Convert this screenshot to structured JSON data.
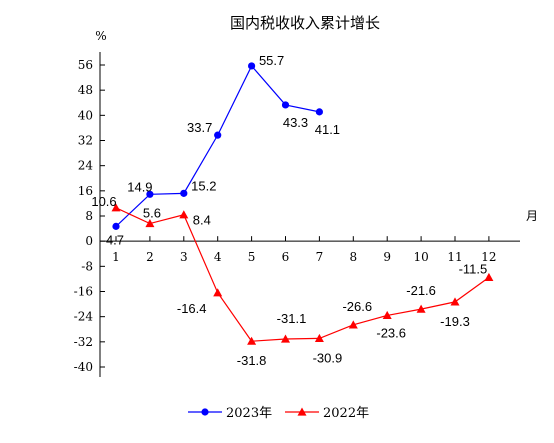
{
  "chart_data": {
    "type": "line",
    "title": "国内税收收入累计增长",
    "ylabel": "%",
    "xlabel": "月",
    "categories": [
      "1",
      "2",
      "3",
      "4",
      "5",
      "6",
      "7",
      "8",
      "9",
      "10",
      "11",
      "12"
    ],
    "ylim": [
      -40,
      56
    ],
    "yticks": [
      56,
      48,
      40,
      32,
      24,
      16,
      8,
      0,
      -8,
      -16,
      -24,
      -32,
      -40
    ],
    "series": [
      {
        "name": "2023年",
        "color": "#0000ff",
        "marker": "circle",
        "values": [
          4.7,
          14.9,
          15.2,
          33.7,
          55.7,
          43.3,
          41.1,
          null,
          null,
          null,
          null,
          null
        ],
        "labels": [
          "4.7",
          "14.9",
          "15.2",
          "33.7",
          "55.7",
          "43.3",
          "41.1",
          "",
          "",
          "",
          "",
          ""
        ]
      },
      {
        "name": "2022年",
        "color": "#ff0000",
        "marker": "triangle",
        "values": [
          10.6,
          5.6,
          8.4,
          -16.4,
          -31.8,
          -31.1,
          -30.9,
          -26.6,
          -23.6,
          -21.6,
          -19.3,
          -11.5
        ],
        "labels": [
          "10.6",
          "5.6",
          "8.4",
          "-16.4",
          "-31.8",
          "-31.1",
          "-30.9",
          "-26.6",
          "-23.6",
          "-21.6",
          "-19.3",
          "-11.5"
        ]
      }
    ],
    "grid": false,
    "legend_position": "bottom-center"
  }
}
